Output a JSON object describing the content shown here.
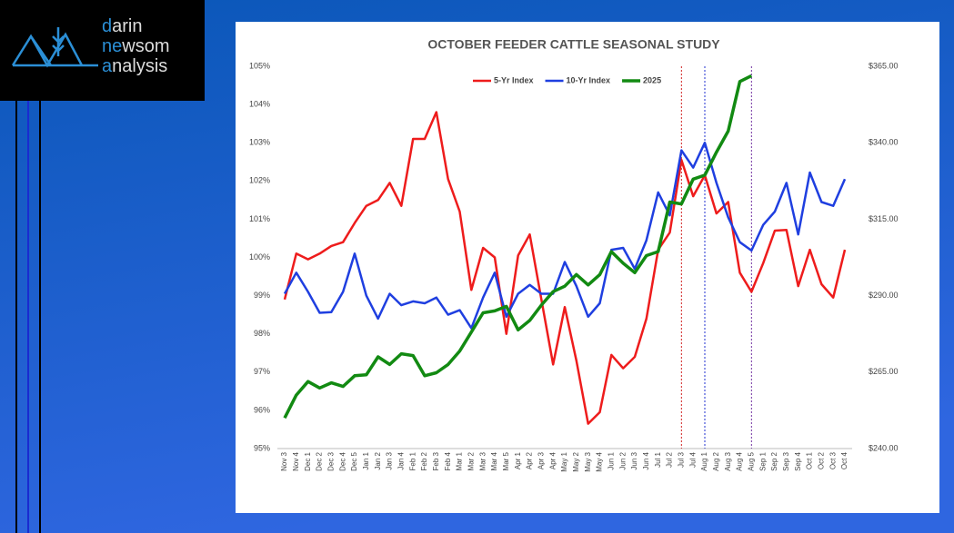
{
  "logo": [
    [
      "d",
      "arin"
    ],
    [
      "ne",
      "wsom"
    ],
    [
      "a",
      "nalysis"
    ]
  ],
  "chart_data": {
    "type": "line",
    "title": "OCTOBER FEEDER CATTLE SEASONAL STUDY",
    "categories": [
      "Nov 3",
      "Nov 4",
      "Dec 1",
      "Dec 2",
      "Dec 3",
      "Dec 4",
      "Dec 5",
      "Jan 1",
      "Jan 2",
      "Jan 3",
      "Jan 4",
      "Feb 1",
      "Feb 2",
      "Feb 3",
      "Feb 4",
      "Mar 1",
      "Mar 2",
      "Mar 3",
      "Mar 4",
      "Mar 5",
      "Apr 1",
      "Apr 2",
      "Apr 3",
      "Apr 4",
      "May 1",
      "May 2",
      "May 3",
      "May 4",
      "Jun 1",
      "Jun 2",
      "Jun 3",
      "Jun 4",
      "Jul 1",
      "Jul 2",
      "Jul 3",
      "Jul 4",
      "Aug 1",
      "Aug 2",
      "Aug 3",
      "Aug 4",
      "Aug 5",
      "Sep 1",
      "Sep 2",
      "Sep 3",
      "Sep 4",
      "Oct 1",
      "Oct 2",
      "Oct 3",
      "Oct 4"
    ],
    "series": [
      {
        "name": "5-Yr Index",
        "color": "#ee1c1c",
        "values": [
          98.9,
          100.1,
          99.95,
          100.1,
          100.3,
          100.4,
          100.9,
          101.35,
          101.5,
          101.95,
          101.35,
          103.1,
          103.1,
          103.8,
          102.05,
          101.2,
          99.15,
          100.25,
          100.0,
          98.0,
          100.05,
          100.6,
          98.9,
          97.2,
          98.7,
          97.3,
          95.65,
          95.95,
          97.45,
          97.1,
          97.4,
          98.4,
          100.2,
          100.65,
          102.55,
          101.6,
          102.15,
          101.15,
          101.45,
          99.6,
          99.1,
          99.85,
          100.7,
          100.72,
          99.25,
          100.2,
          99.3,
          98.95,
          100.2
        ]
      },
      {
        "name": "10-Yr Index",
        "color": "#1f3fe0",
        "values": [
          99.05,
          99.6,
          99.1,
          98.55,
          98.57,
          99.1,
          100.1,
          99.0,
          98.4,
          99.05,
          98.75,
          98.85,
          98.8,
          98.95,
          98.5,
          98.62,
          98.15,
          98.95,
          99.6,
          98.45,
          99.05,
          99.28,
          99.05,
          99.05,
          99.88,
          99.25,
          98.45,
          98.8,
          100.2,
          100.25,
          99.7,
          100.45,
          101.7,
          101.1,
          102.8,
          102.35,
          103.0,
          101.95,
          101.05,
          100.4,
          100.18,
          100.85,
          101.2,
          101.95,
          100.6,
          102.22,
          101.45,
          101.35,
          102.05
        ]
      },
      {
        "name": "2025",
        "color": "#128a12",
        "axis": "y2",
        "values": [
          250,
          257.5,
          261.9,
          259.8,
          261.5,
          260.3,
          263.8,
          264.1,
          270,
          267.5,
          271,
          270.4,
          263.8,
          264.8,
          267.5,
          271.9,
          278.1,
          284.4,
          285,
          286.5,
          278.8,
          281.9,
          286.9,
          291.3,
          293.1,
          296.9,
          293.5,
          296.9,
          304.4,
          300.6,
          297.5,
          303.1,
          304.4,
          320.6,
          320,
          328.1,
          329.4,
          336.9,
          343.8,
          360,
          361.9,
          null,
          null,
          null,
          null,
          null,
          null,
          null,
          null
        ]
      }
    ],
    "ylim": [
      95,
      105
    ],
    "yticks": [
      {
        "value": 95,
        "label": "95%"
      },
      {
        "value": 96,
        "label": "96%"
      },
      {
        "value": 97,
        "label": "97%"
      },
      {
        "value": 98,
        "label": "98%"
      },
      {
        "value": 99,
        "label": "99%"
      },
      {
        "value": 100,
        "label": "100%"
      },
      {
        "value": 101,
        "label": "101%"
      },
      {
        "value": 102,
        "label": "102%"
      },
      {
        "value": 103,
        "label": "103%"
      },
      {
        "value": 104,
        "label": "104%"
      },
      {
        "value": 105,
        "label": "105%"
      }
    ],
    "y2lim": [
      240,
      365
    ],
    "y2ticks": [
      {
        "value": 240,
        "label": "$240.00"
      },
      {
        "value": 265,
        "label": "$265.00"
      },
      {
        "value": 290,
        "label": "$290.00"
      },
      {
        "value": 315,
        "label": "$315.00"
      },
      {
        "value": 340,
        "label": "$340.00"
      },
      {
        "value": 365,
        "label": "$365.00"
      }
    ],
    "legend": "top",
    "grid": false
  }
}
